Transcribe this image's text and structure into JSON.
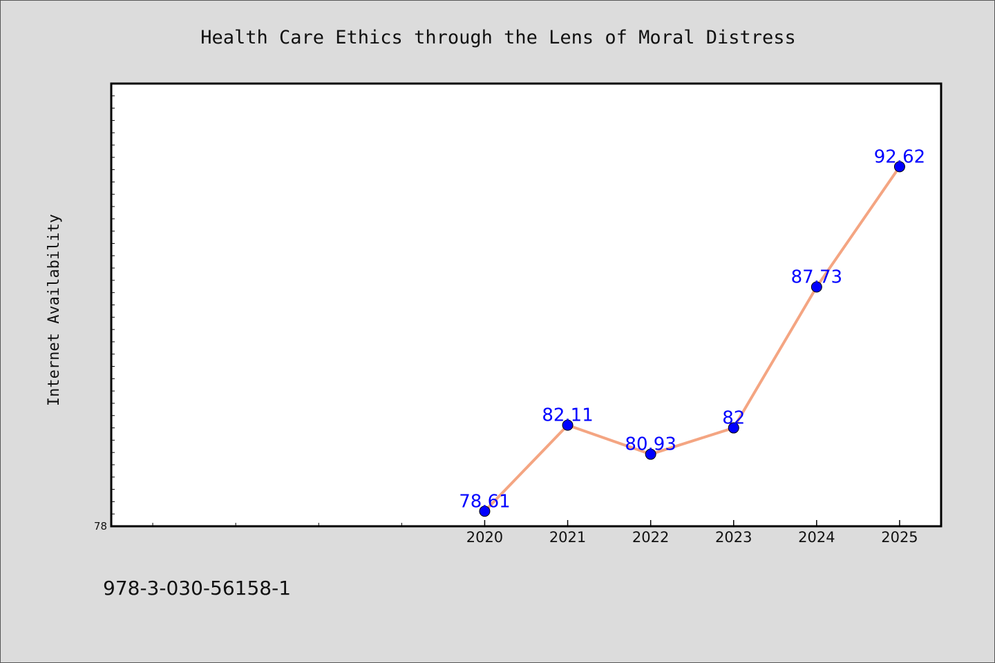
{
  "chart_data": {
    "type": "line",
    "title": "Health Care Ethics through the Lens of Moral Distress",
    "xlabel": "",
    "ylabel": "Internet Availability",
    "x": [
      "2020",
      "2021",
      "2022",
      "2023",
      "2024",
      "2025"
    ],
    "series": [
      {
        "values": [
          78.61,
          82.11,
          80.93,
          82.0,
          87.73,
          92.62
        ],
        "data_labels": [
          "78.61",
          "82.11",
          "80.93",
          "82",
          "87.73",
          "92.62"
        ]
      }
    ],
    "ytick_labels": [
      "78"
    ],
    "ylim": [
      78,
      96
    ],
    "x_range": [
      "2015.5",
      "2025.5"
    ],
    "grid": false,
    "legend": "none",
    "line_color": "#f4a582",
    "marker_color": "#0000ff",
    "label_color": "#0000ff"
  },
  "footer": {
    "isbn": "978-3-030-56158-1"
  }
}
